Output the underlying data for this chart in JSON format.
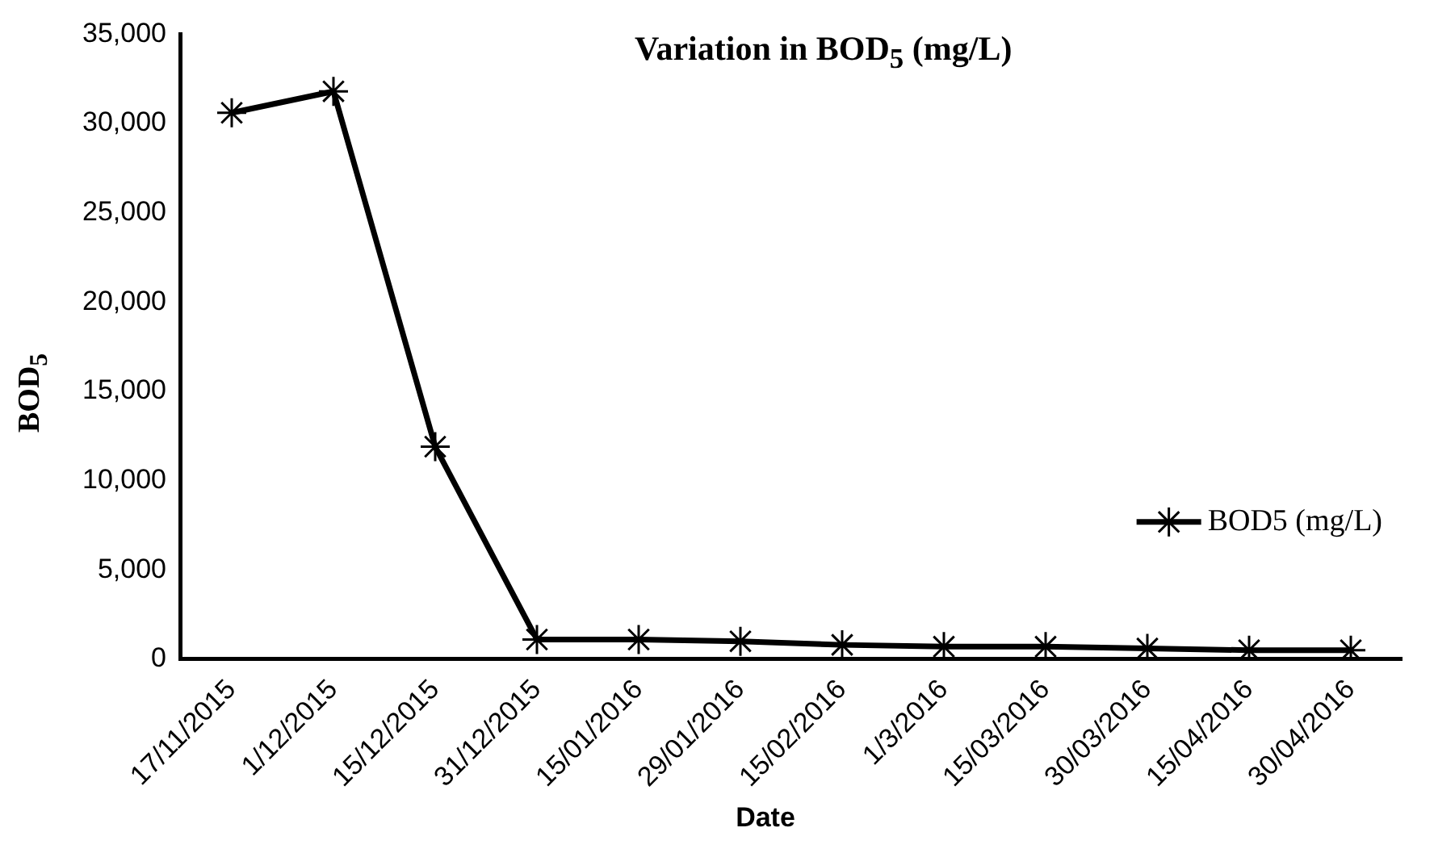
{
  "chart_data": {
    "type": "line",
    "title": "Variation in BOD$_{5}$ (mg/L)",
    "xlabel": "Date",
    "ylabel": "BOD$_{5}$",
    "categories": [
      "17/11/2015",
      "1/12/2015",
      "15/12/2015",
      "31/12/2015",
      "15/01/2016",
      "29/01/2016",
      "15/02/2016",
      "1/3/2016",
      "15/03/2016",
      "30/03/2016",
      "15/04/2016",
      "30/04/2016"
    ],
    "series": [
      {
        "name": "BOD5 (mg/L)",
        "color": "#000000",
        "values": [
          30600,
          31800,
          11900,
          1100,
          1100,
          1000,
          800,
          700,
          700,
          600,
          500,
          500
        ]
      }
    ],
    "ylim": [
      0,
      35000
    ],
    "yticks": [
      0,
      {
        "value": 5000,
        "label": "5,000"
      },
      {
        "value": 10000,
        "label": "10,000"
      },
      {
        "value": 15000,
        "label": "15,000"
      },
      {
        "value": 20000,
        "label": "20,000"
      },
      {
        "value": 25000,
        "label": "25,000"
      },
      {
        "value": 30000,
        "label": "30,000"
      },
      {
        "value": 35000,
        "label": "35,000"
      }
    ],
    "grid": false,
    "legend": "bottom right",
    "marker": "cross",
    "line_style": "solid"
  }
}
